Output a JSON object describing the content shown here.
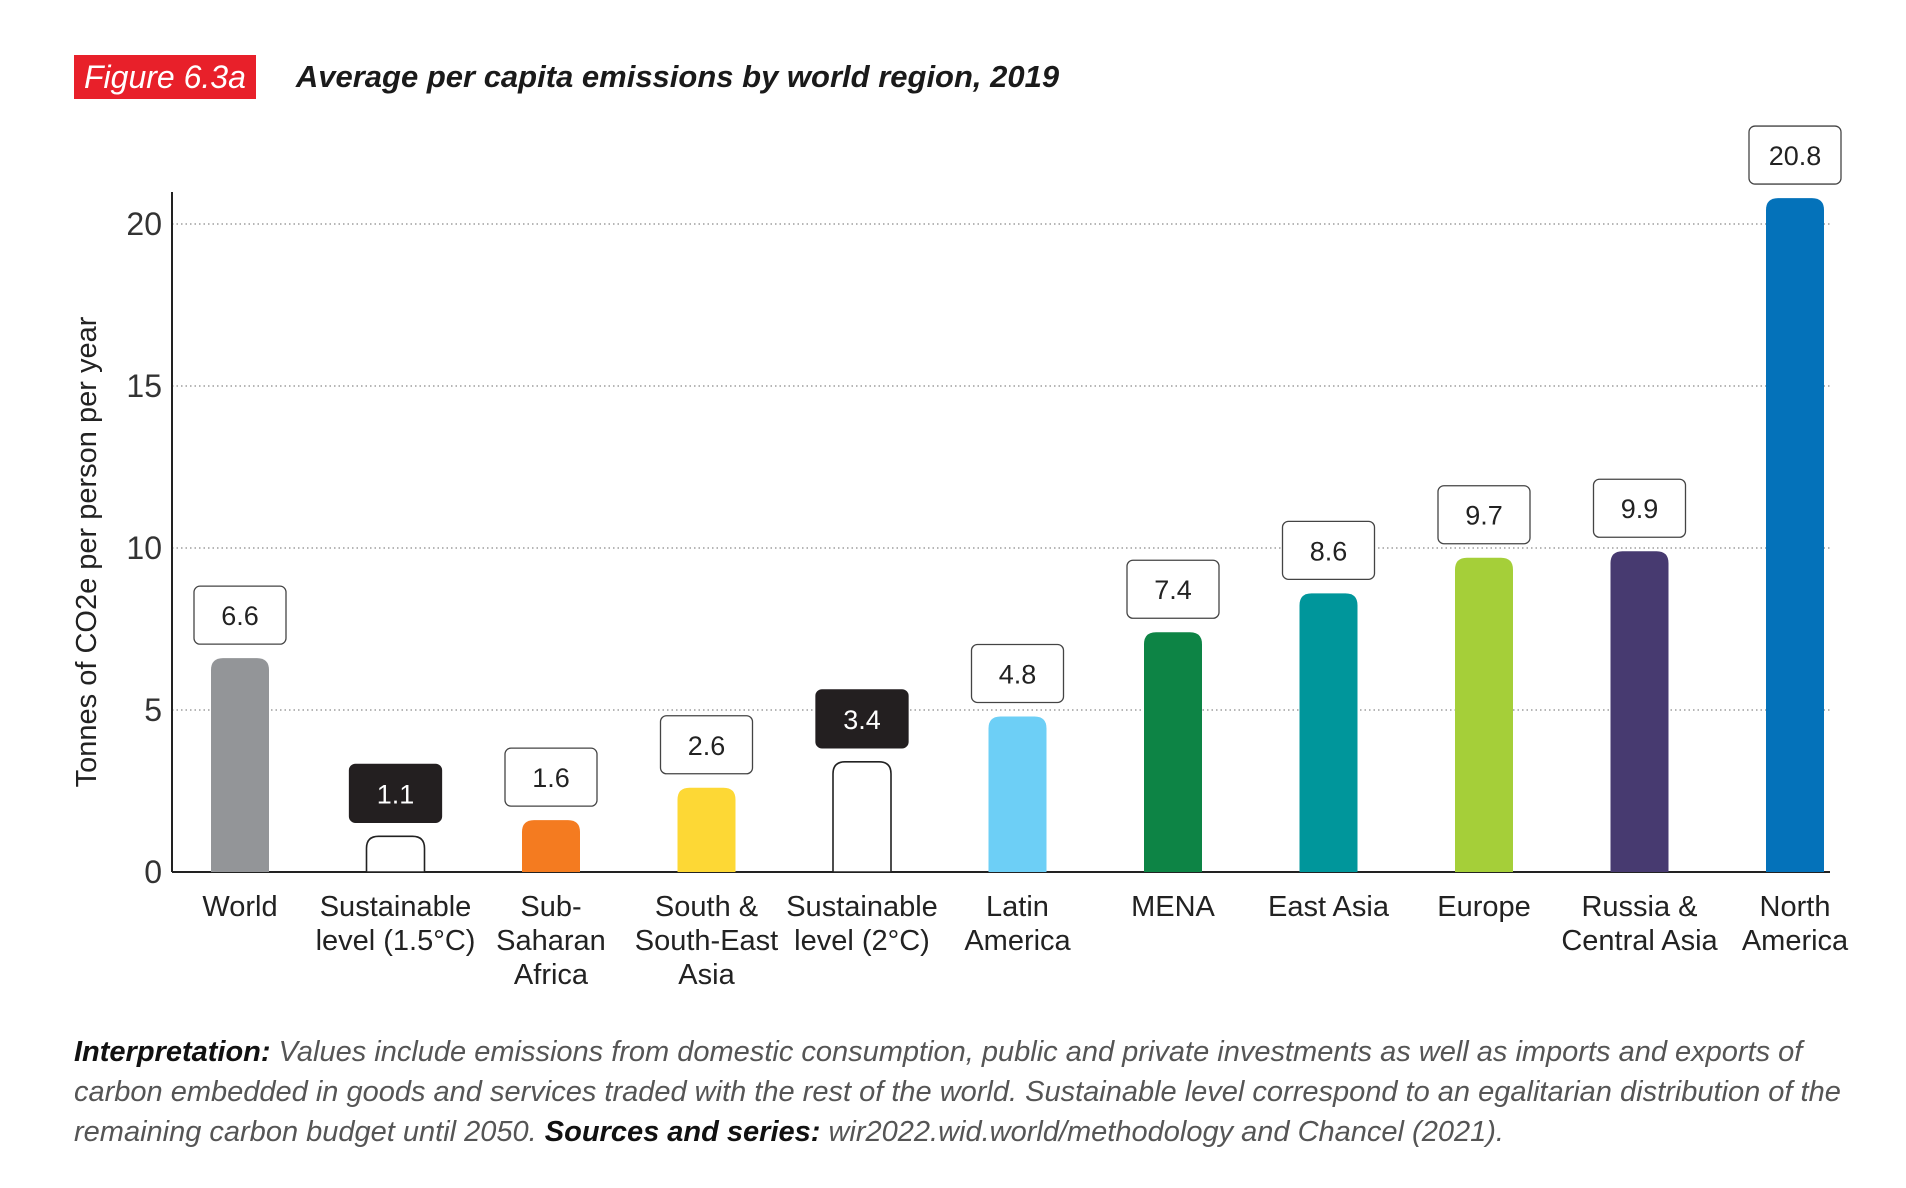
{
  "figure": {
    "badge": "Figure 6.3a",
    "title": "Average per capita emissions by world region, 2019"
  },
  "chart_data": {
    "type": "bar",
    "title": "Average per capita emissions by world region, 2019",
    "xlabel": "",
    "ylabel": "Tonnes of CO2e per person per year",
    "ylim": [
      0,
      21
    ],
    "yticks": [
      0,
      5,
      10,
      15,
      20
    ],
    "grid": true,
    "categories": [
      [
        "World"
      ],
      [
        "Sustainable",
        "level (1.5°C)"
      ],
      [
        "Sub-",
        "Saharan",
        "Africa"
      ],
      [
        "South &",
        "South-East",
        "Asia"
      ],
      [
        "Sustainable",
        "level (2°C)"
      ],
      [
        "Latin",
        "America"
      ],
      [
        "MENA"
      ],
      [
        "East Asia"
      ],
      [
        "Europe"
      ],
      [
        "Russia &",
        "Central Asia"
      ],
      [
        "North",
        "America"
      ]
    ],
    "values": [
      6.6,
      1.1,
      1.6,
      2.6,
      3.4,
      4.8,
      7.4,
      8.6,
      9.7,
      9.9,
      20.8
    ],
    "value_labels": [
      "6.6",
      "1.1",
      "1.6",
      "2.6",
      "3.4",
      "4.8",
      "7.4",
      "8.6",
      "9.7",
      "9.9",
      "20.8"
    ],
    "colors": [
      "#939598",
      "#ffffff",
      "#f47b20",
      "#fdd835",
      "#ffffff",
      "#6dcff6",
      "#0d8445",
      "#00969b",
      "#a5cf39",
      "#473a70",
      "#0472ba"
    ],
    "outlined": [
      false,
      true,
      false,
      false,
      true,
      false,
      false,
      false,
      false,
      false,
      false
    ],
    "label_style": [
      "light",
      "dark",
      "light",
      "light",
      "dark",
      "light",
      "light",
      "light",
      "light",
      "light",
      "light"
    ]
  },
  "notes": {
    "interpretation_label": "Interpretation:",
    "interpretation_text": " Values include emissions from domestic consumption, public and private investments as well as imports and exports of carbon embedded in goods and services traded with the rest of the world. Sustainable level correspond to an egalitarian distribution of the remaining carbon budget until 2050. ",
    "sources_label": "Sources and series:",
    "sources_text": " wir2022.wid.world/methodology and Chancel (2021)."
  }
}
